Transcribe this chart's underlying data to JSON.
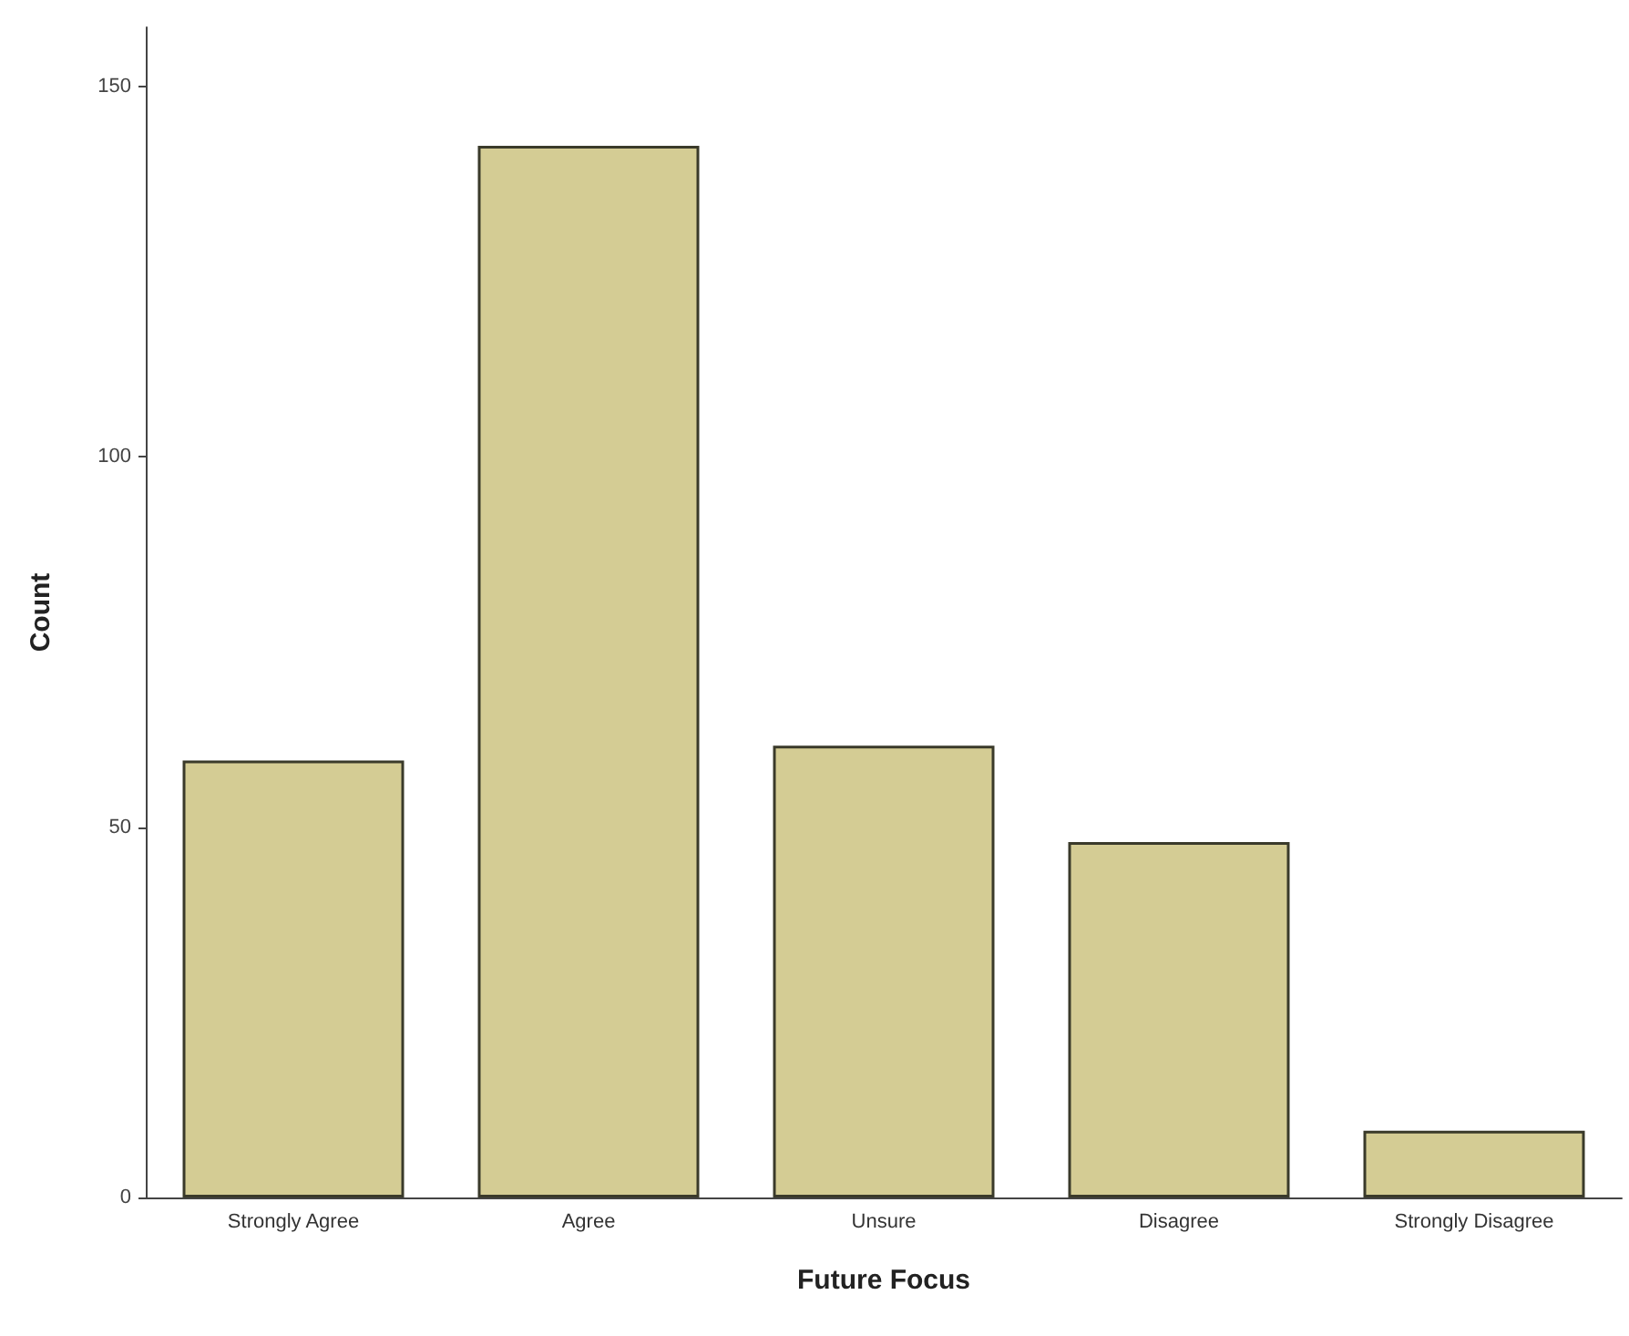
{
  "chart_data": {
    "type": "bar",
    "xlabel": "Future Focus",
    "ylabel": "Count",
    "categories": [
      "Strongly Agree",
      "Agree",
      "Unsure",
      "Disagree",
      "Strongly Disagree"
    ],
    "values": [
      59,
      142,
      61,
      48,
      9
    ],
    "color": "#d4cc94",
    "ylim": [
      0,
      158
    ],
    "yticks": [
      0,
      50,
      100,
      150
    ],
    "grid": false
  }
}
